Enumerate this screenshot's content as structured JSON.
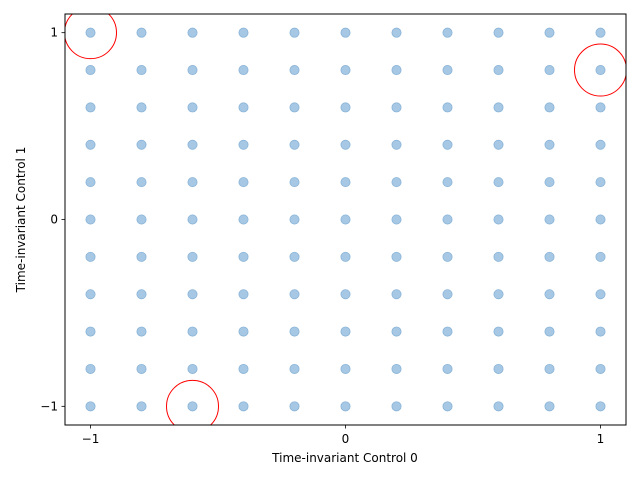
{
  "chart_data": {
    "type": "scatter",
    "xlabel": "Time-invariant Control 0",
    "ylabel": "Time-invariant Control 1",
    "xlim": [
      -1.1,
      1.1
    ],
    "ylim": [
      -1.1,
      1.1
    ],
    "xticks": [
      -1,
      0,
      1
    ],
    "yticks": [
      -1,
      0,
      1
    ],
    "xtick_labels": [
      "−1",
      "0",
      "1"
    ],
    "ytick_labels": [
      "−1",
      "0",
      "1"
    ],
    "grid": false,
    "series": [
      {
        "marker": "filled-circle",
        "color": "#a6c8e4",
        "edge_color": "#8ab4d8",
        "grid_x": [
          -1,
          -0.8,
          -0.6,
          -0.4,
          -0.2,
          0,
          0.2,
          0.4,
          0.6,
          0.8,
          1
        ],
        "grid_y": [
          -1,
          -0.8,
          -0.6,
          -0.4,
          -0.2,
          0,
          0.2,
          0.4,
          0.6,
          0.8,
          1
        ]
      },
      {
        "marker": "hollow-circle",
        "color": "#ff0000",
        "points": [
          {
            "x": -1,
            "y": 1
          },
          {
            "x": 1,
            "y": 0.8
          },
          {
            "x": -0.6,
            "y": -1
          }
        ]
      }
    ]
  }
}
